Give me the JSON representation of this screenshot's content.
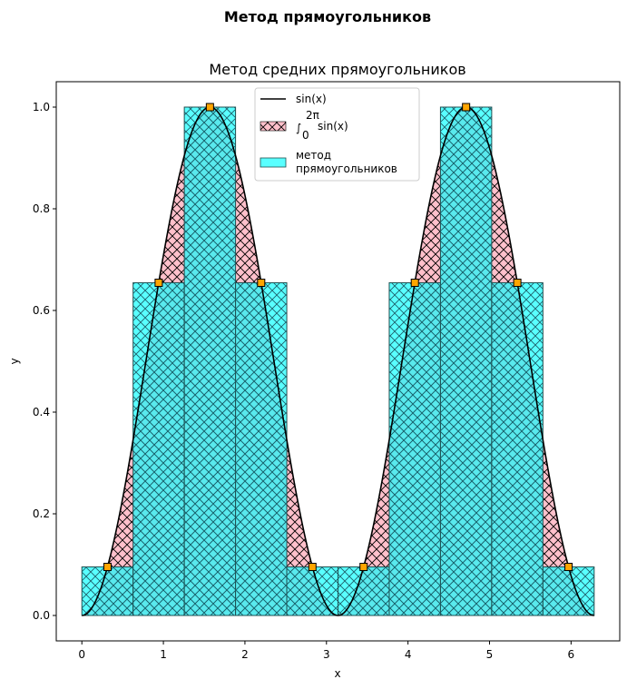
{
  "figure": {
    "suptitle": "Метод прямоугольников"
  },
  "chart_data": {
    "type": "area",
    "title": "Метод средних прямоугольников",
    "xlabel": "x",
    "ylabel": "y",
    "xlim": [
      -0.314,
      6.597
    ],
    "ylim": [
      -0.05,
      1.05
    ],
    "xticks": [
      "0",
      "1",
      "2",
      "3",
      "4",
      "5",
      "6"
    ],
    "yticks": [
      "0.0",
      "0.2",
      "0.4",
      "0.6",
      "0.8",
      "1.0"
    ],
    "grid": false,
    "legend_position": "top-center",
    "curve": {
      "name": "sin(x)",
      "function": "sin(x)^2",
      "x_range": [
        0,
        6.2832
      ],
      "color": "#000000"
    },
    "fill_under_curve": {
      "name": "∫₀^{2π} sin(x)",
      "color": "#ffc0cb",
      "hatch": "cross"
    },
    "rectangles": {
      "name": "метод прямоугольников",
      "color": "#00ffff",
      "edge_color": "#1f4f4f",
      "hatch": "cross",
      "x_left": [
        0.0,
        0.6283,
        1.2566,
        1.885,
        2.5133,
        3.1416,
        3.7699,
        4.3982,
        5.0265,
        5.6549
      ],
      "width": 0.6283,
      "heights": [
        0.0955,
        0.6545,
        1.0,
        0.6545,
        0.0955,
        0.0955,
        0.6545,
        1.0,
        0.6545,
        0.0955
      ]
    },
    "midpoints": {
      "marker": "square",
      "color": "#ffa500",
      "x": [
        0.3142,
        0.9425,
        1.5708,
        2.1991,
        2.8274,
        3.4558,
        4.0841,
        4.7124,
        5.3407,
        5.969
      ],
      "y": [
        0.0955,
        0.6545,
        1.0,
        0.6545,
        0.0955,
        0.0955,
        0.6545,
        1.0,
        0.6545,
        0.0955
      ]
    },
    "legend": {
      "curve_label": "sin(x)",
      "fill_label_main": "∫",
      "fill_label_sup": "2π",
      "fill_label_sub": "0",
      "fill_label_tail": "sin(x)",
      "rect_label_line1": "метод",
      "rect_label_line2": "прямоугольников"
    }
  }
}
